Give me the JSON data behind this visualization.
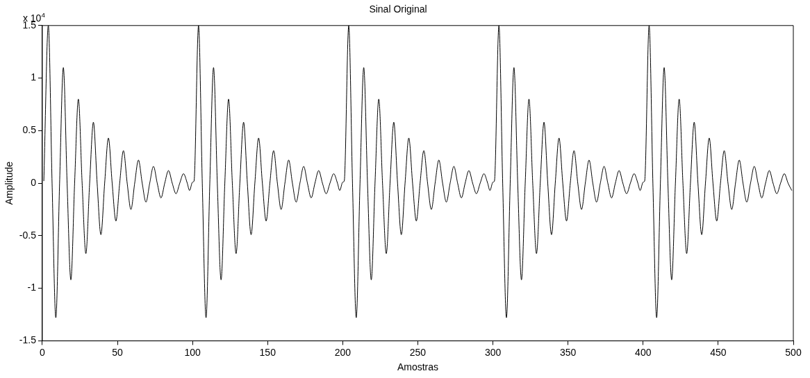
{
  "chart_data": {
    "type": "line",
    "title": "Sinal Original",
    "xlabel": "Amostras",
    "ylabel": "Amplitude",
    "annotations": [
      "x 10$^{4}$"
    ],
    "xlim": [
      0,
      500
    ],
    "xticks": [
      0,
      50,
      100,
      150,
      200,
      250,
      300,
      350,
      400,
      450,
      500
    ],
    "ylim": [
      -1.5,
      1.5
    ],
    "yticks": [
      -1.5,
      -1,
      -0.5,
      0,
      0.5,
      1,
      1.5
    ],
    "grid": false,
    "legend": false,
    "marker": "none",
    "line_style": "solid",
    "series": [
      {
        "color": "#000000",
        "x": [
          1,
          4,
          6.5,
          9,
          11.5,
          14,
          16.5,
          19,
          21.5,
          24,
          26.5,
          29,
          31.5,
          34,
          36.5,
          39,
          41.5,
          44,
          46.5,
          49,
          51.5,
          54,
          56.5,
          59,
          61.5,
          64,
          66.5,
          69,
          71.5,
          74,
          76.5,
          79,
          81.5,
          84,
          86.5,
          89,
          91.5,
          94,
          96.5,
          98,
          100,
          101,
          104,
          106.5,
          109,
          111.5,
          114,
          116.5,
          119,
          121.5,
          124,
          126.5,
          129,
          131.5,
          134,
          136.5,
          139,
          141.5,
          144,
          146.5,
          149,
          151.5,
          154,
          156.5,
          159,
          161.5,
          164,
          166.5,
          169,
          171.5,
          174,
          176.5,
          179,
          181.5,
          184,
          186.5,
          189,
          191.5,
          194,
          196.5,
          198,
          200,
          201,
          204,
          206.5,
          209,
          211.5,
          214,
          216.5,
          219,
          221.5,
          224,
          226.5,
          229,
          231.5,
          234,
          236.5,
          239,
          241.5,
          244,
          246.5,
          249,
          251.5,
          254,
          256.5,
          259,
          261.5,
          264,
          266.5,
          269,
          271.5,
          274,
          276.5,
          279,
          281.5,
          284,
          286.5,
          289,
          291.5,
          294,
          296.5,
          298,
          300,
          301,
          304,
          306.5,
          309,
          311.5,
          314,
          316.5,
          319,
          321.5,
          324,
          326.5,
          329,
          331.5,
          334,
          336.5,
          339,
          341.5,
          344,
          346.5,
          349,
          351.5,
          354,
          356.5,
          359,
          361.5,
          364,
          366.5,
          369,
          371.5,
          374,
          376.5,
          379,
          381.5,
          384,
          386.5,
          389,
          391.5,
          394,
          396.5,
          398,
          400,
          401,
          404,
          406.5,
          409,
          411.5,
          414,
          416.5,
          419,
          421.5,
          424,
          426.5,
          429,
          431.5,
          434,
          436.5,
          439,
          441.5,
          444,
          446.5,
          449,
          451.5,
          454,
          456.5,
          459,
          461.5,
          464,
          466.5,
          469,
          471.5,
          474,
          476.5,
          479,
          481.5,
          484,
          486.5,
          489,
          491.5,
          494,
          496.5,
          499
        ],
        "values": [
          0.02,
          1.5,
          0,
          -1.28,
          0,
          1.1,
          0,
          -0.92,
          0,
          0.8,
          0,
          -0.67,
          0,
          0.58,
          0,
          -0.49,
          0,
          0.43,
          0,
          -0.36,
          0,
          0.31,
          0,
          -0.25,
          0,
          0.22,
          0,
          -0.18,
          0,
          0.16,
          0,
          -0.14,
          0,
          0.12,
          0,
          -0.1,
          0,
          0.09,
          0,
          -0.07,
          0.01,
          0.02,
          1.5,
          0,
          -1.28,
          0,
          1.1,
          0,
          -0.92,
          0,
          0.8,
          0,
          -0.67,
          0,
          0.58,
          0,
          -0.49,
          0,
          0.43,
          0,
          -0.36,
          0,
          0.31,
          0,
          -0.25,
          0,
          0.22,
          0,
          -0.18,
          0,
          0.16,
          0,
          -0.14,
          0,
          0.12,
          0,
          -0.1,
          0,
          0.09,
          0,
          -0.07,
          0.01,
          0.02,
          1.5,
          0,
          -1.28,
          0,
          1.1,
          0,
          -0.92,
          0,
          0.8,
          0,
          -0.67,
          0,
          0.58,
          0,
          -0.49,
          0,
          0.43,
          0,
          -0.36,
          0,
          0.31,
          0,
          -0.25,
          0,
          0.22,
          0,
          -0.18,
          0,
          0.16,
          0,
          -0.14,
          0,
          0.12,
          0,
          -0.1,
          0,
          0.09,
          0,
          -0.07,
          0.01,
          0.02,
          1.5,
          0,
          -1.28,
          0,
          1.1,
          0,
          -0.92,
          0,
          0.8,
          0,
          -0.67,
          0,
          0.58,
          0,
          -0.49,
          0,
          0.43,
          0,
          -0.36,
          0,
          0.31,
          0,
          -0.25,
          0,
          0.22,
          0,
          -0.18,
          0,
          0.16,
          0,
          -0.14,
          0,
          0.12,
          0,
          -0.1,
          0,
          0.09,
          0,
          -0.07,
          0.01,
          0.02,
          1.5,
          0,
          -1.28,
          0,
          1.1,
          0,
          -0.92,
          0,
          0.8,
          0,
          -0.67,
          0,
          0.58,
          0,
          -0.49,
          0,
          0.43,
          0,
          -0.36,
          0,
          0.31,
          0,
          -0.25,
          0,
          0.22,
          0,
          -0.18,
          0,
          0.16,
          0,
          -0.14,
          0,
          0.12,
          0,
          -0.1,
          0,
          0.09,
          0,
          -0.07
        ]
      }
    ]
  }
}
